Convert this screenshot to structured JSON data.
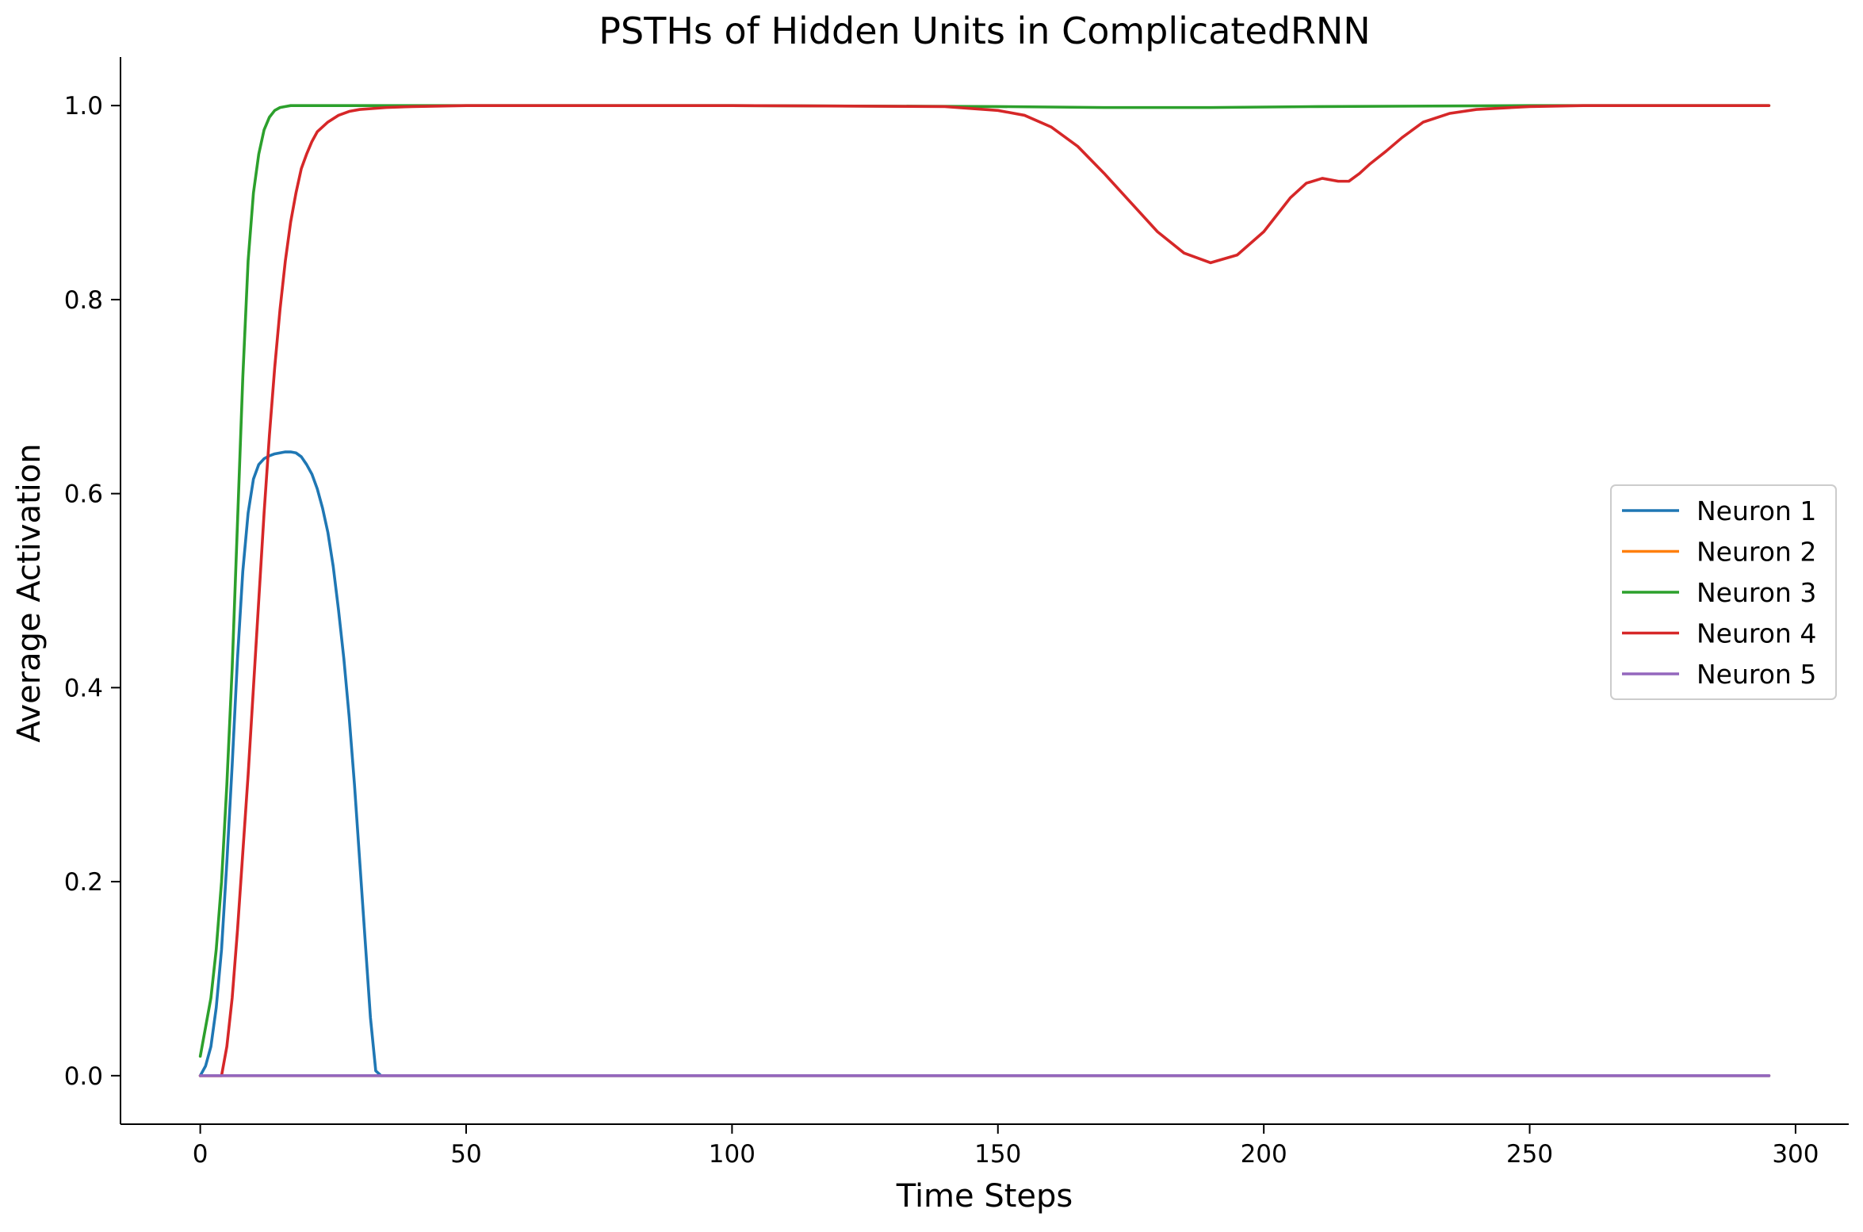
{
  "chart_data": {
    "type": "line",
    "title": "PSTHs of Hidden Units in ComplicatedRNN",
    "xlabel": "Time Steps",
    "ylabel": "Average Activation",
    "xlim": [
      -15,
      310
    ],
    "ylim": [
      -0.05,
      1.05
    ],
    "xticks": [
      0,
      50,
      100,
      150,
      200,
      250,
      300
    ],
    "yticks": [
      0.0,
      0.2,
      0.4,
      0.6,
      0.8,
      1.0
    ],
    "xtick_labels": [
      "0",
      "50",
      "100",
      "150",
      "200",
      "250",
      "300"
    ],
    "ytick_labels": [
      "0.0",
      "0.2",
      "0.4",
      "0.6",
      "0.8",
      "1.0"
    ],
    "grid": false,
    "legend_position": "center-right",
    "series": [
      {
        "name": "Neuron 1",
        "color": "#1f77b4",
        "x": [
          0,
          1,
          2,
          3,
          4,
          5,
          6,
          7,
          8,
          9,
          10,
          11,
          12,
          13,
          14,
          15,
          16,
          17,
          18,
          19,
          20,
          21,
          22,
          23,
          24,
          25,
          26,
          27,
          28,
          29,
          30,
          31,
          32,
          33,
          34,
          35,
          36,
          37,
          38,
          40,
          295
        ],
        "values": [
          0.0,
          0.01,
          0.03,
          0.07,
          0.13,
          0.22,
          0.32,
          0.43,
          0.52,
          0.58,
          0.615,
          0.63,
          0.636,
          0.639,
          0.641,
          0.642,
          0.643,
          0.643,
          0.642,
          0.638,
          0.63,
          0.62,
          0.605,
          0.585,
          0.56,
          0.525,
          0.48,
          0.43,
          0.37,
          0.3,
          0.22,
          0.14,
          0.06,
          0.005,
          0.0,
          0.0,
          0.0,
          0.0,
          0.0,
          0.0,
          0.0
        ]
      },
      {
        "name": "Neuron 2",
        "color": "#ff7f0e",
        "x": [
          0,
          50,
          100,
          150,
          200,
          250,
          295
        ],
        "values": [
          0.0,
          0.0,
          0.0,
          0.0,
          0.0,
          0.0,
          0.0
        ]
      },
      {
        "name": "Neuron 3",
        "color": "#2ca02c",
        "x": [
          0,
          1,
          2,
          3,
          4,
          5,
          6,
          7,
          8,
          9,
          10,
          11,
          12,
          13,
          14,
          15,
          16,
          17,
          18,
          20,
          25,
          30,
          50,
          100,
          150,
          170,
          190,
          210,
          250,
          295
        ],
        "values": [
          0.02,
          0.05,
          0.08,
          0.13,
          0.2,
          0.3,
          0.42,
          0.57,
          0.72,
          0.84,
          0.91,
          0.95,
          0.975,
          0.988,
          0.995,
          0.998,
          0.999,
          1.0,
          1.0,
          1.0,
          1.0,
          1.0,
          1.0,
          1.0,
          0.999,
          0.998,
          0.998,
          0.999,
          1.0,
          1.0
        ]
      },
      {
        "name": "Neuron 4",
        "color": "#d62728",
        "x": [
          0,
          2,
          4,
          5,
          6,
          7,
          8,
          9,
          10,
          11,
          12,
          13,
          14,
          15,
          16,
          17,
          18,
          19,
          20,
          21,
          22,
          24,
          26,
          28,
          30,
          35,
          40,
          50,
          100,
          140,
          150,
          155,
          160,
          165,
          170,
          175,
          180,
          185,
          190,
          195,
          200,
          205,
          208,
          211,
          214,
          216,
          218,
          220,
          223,
          226,
          230,
          235,
          240,
          250,
          260,
          270,
          280,
          295
        ],
        "values": [
          0.0,
          0.0,
          0.0,
          0.03,
          0.08,
          0.15,
          0.23,
          0.31,
          0.4,
          0.49,
          0.58,
          0.66,
          0.73,
          0.79,
          0.84,
          0.88,
          0.91,
          0.935,
          0.95,
          0.963,
          0.973,
          0.983,
          0.99,
          0.994,
          0.996,
          0.998,
          0.999,
          1.0,
          1.0,
          0.999,
          0.995,
          0.99,
          0.978,
          0.958,
          0.93,
          0.9,
          0.87,
          0.848,
          0.838,
          0.846,
          0.87,
          0.905,
          0.92,
          0.925,
          0.922,
          0.922,
          0.93,
          0.94,
          0.953,
          0.967,
          0.983,
          0.992,
          0.996,
          0.999,
          1.0,
          1.0,
          1.0,
          1.0
        ]
      },
      {
        "name": "Neuron 5",
        "color": "#9467bd",
        "x": [
          0,
          50,
          100,
          150,
          200,
          250,
          295
        ],
        "values": [
          0.0,
          0.0,
          0.0,
          0.0,
          0.0,
          0.0,
          0.0
        ]
      }
    ]
  }
}
